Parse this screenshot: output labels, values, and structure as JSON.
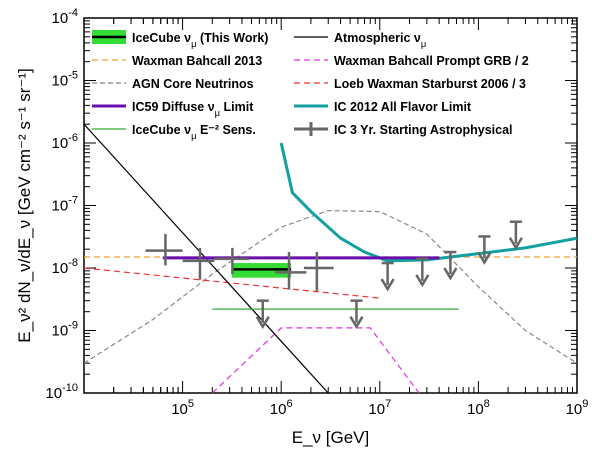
{
  "chart_data": {
    "type": "line",
    "title": "",
    "xlabel": "E_ν [GeV]",
    "ylabel": "E_ν² dN_ν/dE_ν [GeV cm⁻² s⁻¹ sr⁻¹]",
    "xscale": "log",
    "yscale": "log",
    "xlim": [
      10000,
      1000000000
    ],
    "ylim": [
      1e-10,
      0.0001
    ],
    "x_ticks": [
      {
        "value": 100000,
        "base": "10",
        "exp": "5"
      },
      {
        "value": 1000000,
        "base": "10",
        "exp": "6"
      },
      {
        "value": 10000000,
        "base": "10",
        "exp": "7"
      },
      {
        "value": 100000000,
        "base": "10",
        "exp": "8"
      },
      {
        "value": 1000000000,
        "base": "10",
        "exp": "9"
      }
    ],
    "y_ticks": [
      {
        "value": 1e-10,
        "base": "10",
        "exp": "-10"
      },
      {
        "value": 1e-09,
        "base": "10",
        "exp": "-9"
      },
      {
        "value": 1e-08,
        "base": "10",
        "exp": "-8"
      },
      {
        "value": 1e-07,
        "base": "10",
        "exp": "-7"
      },
      {
        "value": 1e-06,
        "base": "10",
        "exp": "-6"
      },
      {
        "value": 1e-05,
        "base": "10",
        "exp": "-5"
      },
      {
        "value": 0.0001,
        "base": "10",
        "exp": "-4"
      }
    ],
    "legend_position": "top",
    "series": [
      {
        "name": "IceCube ν_μ (This Work)",
        "kind": "band",
        "color": "#33dd33",
        "x": [
          316000,
          1260000
        ],
        "y_low": 7e-09,
        "y_high": 1.2e-08,
        "y_central": 9.5e-09
      },
      {
        "name": "Waxman Bahcall 2013",
        "kind": "line",
        "color": "#f0a030",
        "dash": "6,4",
        "x": [
          10000,
          1000000000
        ],
        "y": [
          1.5e-08,
          1.5e-08
        ]
      },
      {
        "name": "AGN Core Neutrinos",
        "kind": "line",
        "color": "#888888",
        "dash": "5,3",
        "x": [
          10000,
          50000,
          200000,
          1000000,
          3000000,
          10000000,
          30000000,
          100000000,
          300000000,
          1000000000
        ],
        "y": [
          3e-10,
          1.5e-09,
          8e-09,
          4.5e-08,
          8.3e-08,
          8e-08,
          3.5e-08,
          5e-09,
          1e-09,
          3e-10
        ]
      },
      {
        "name": "IC59 Diffuse ν_μ Limit",
        "kind": "line",
        "color": "#6a0dad",
        "x": [
          63000,
          40000000
        ],
        "y": [
          1.45e-08,
          1.45e-08
        ]
      },
      {
        "name": "IceCube ν_μ E⁻² Sens.",
        "kind": "line",
        "color": "#33aa33",
        "x": [
          200000,
          63000000
        ],
        "y": [
          2.2e-09,
          2.2e-09
        ]
      },
      {
        "name": "Atmospheric ν_μ",
        "kind": "line",
        "color": "#000000",
        "x": [
          10000,
          3000000
        ],
        "y": [
          2e-06,
          1e-10
        ]
      },
      {
        "name": "Waxman Bahcall Prompt GRB / 2",
        "kind": "line",
        "color": "#dd33dd",
        "dash": "6,4",
        "x": [
          200000,
          1000000,
          8000000,
          25000000
        ],
        "y": [
          1e-10,
          1.1e-09,
          1.1e-09,
          1e-10
        ]
      },
      {
        "name": "Loeb Waxman Starburst 2006 / 3",
        "kind": "line",
        "color": "#ee3333",
        "dash": "6,4",
        "x": [
          10000,
          10000000
        ],
        "y": [
          1e-08,
          3.3e-09
        ]
      },
      {
        "name": "IC 2012 All Flavor Limit",
        "kind": "line",
        "color": "#12a0a0",
        "x": [
          1000000,
          1300000,
          2000000,
          4000000,
          7000000,
          12000000,
          30000000,
          100000000,
          300000000,
          1000000000
        ],
        "y": [
          1e-06,
          1.6e-07,
          8e-08,
          3e-08,
          1.8e-08,
          1.3e-08,
          1.35e-08,
          1.7e-08,
          2.1e-08,
          3e-08
        ]
      },
      {
        "name": "IC 3 Yr. Starting Astrophysical",
        "kind": "errorbars",
        "color": "#666666",
        "points": [
          {
            "x": 67000,
            "y": 1.9e-08,
            "xlo": 42000,
            "xhi": 100000,
            "ylo": 1.1e-08,
            "yhi": 3.5e-08
          },
          {
            "x": 150000,
            "y": 1.3e-08,
            "xlo": 100000,
            "xhi": 210000,
            "ylo": 6.5e-09,
            "yhi": 2.1e-08
          },
          {
            "x": 320000,
            "y": 1.4e-08,
            "xlo": 210000,
            "xhi": 470000,
            "ylo": 8e-09,
            "yhi": 2.1e-08
          },
          {
            "x": 1200000,
            "y": 8.5e-09,
            "xlo": 870000,
            "xhi": 1800000,
            "ylo": 4.5e-09,
            "yhi": 1.8e-08
          },
          {
            "x": 2300000,
            "y": 1e-08,
            "xlo": 1700000,
            "xhi": 3400000,
            "ylo": 4.3e-09,
            "yhi": 1.8e-08
          }
        ],
        "upper_limits": [
          {
            "x": 650000,
            "y": 3e-09
          },
          {
            "x": 5800000,
            "y": 3e-09
          },
          {
            "x": 12000000,
            "y": 1.2e-08
          },
          {
            "x": 27000000,
            "y": 1.4e-08
          },
          {
            "x": 52000000,
            "y": 1.8e-08
          },
          {
            "x": 115000000,
            "y": 3.2e-08
          },
          {
            "x": 240000000,
            "y": 5.5e-08
          }
        ]
      }
    ]
  }
}
